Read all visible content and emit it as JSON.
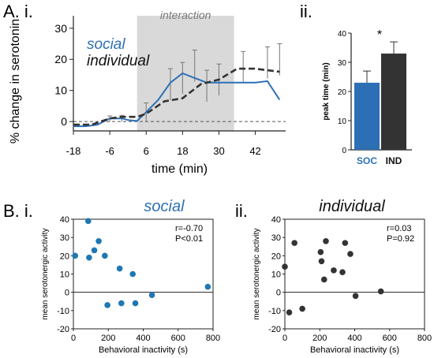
{
  "panel_labels": {
    "A_i": "A. i.",
    "A_ii": "ii.",
    "B_i": "B. i.",
    "B_ii": "ii."
  },
  "colors": {
    "social": "#2d6fb5",
    "individual": "#333333",
    "scatter_social": "#1f77b4",
    "shade": "#d9d9d9"
  },
  "chart_data": [
    {
      "id": "timecourse",
      "type": "line",
      "ylabel": "% change in serotonin",
      "xlabel": "time (min)",
      "x_ticks": [
        "-18",
        "-6",
        "6",
        "18",
        "30",
        "42"
      ],
      "y_ticks": [
        "0",
        "10",
        "20",
        "30"
      ],
      "xlim": [
        -18,
        52
      ],
      "ylim": [
        -3,
        34
      ],
      "shaded_interval": {
        "label": "interaction",
        "x": [
          3,
          35
        ]
      },
      "series": [
        {
          "name": "social",
          "style": "solid",
          "x": [
            -18,
            -14,
            -10,
            -6,
            -2,
            0,
            3,
            6,
            10,
            14,
            18,
            22,
            26,
            30,
            34,
            38,
            42,
            46,
            50
          ],
          "y": [
            -1.5,
            -1.5,
            -1.0,
            1.0,
            1.0,
            0.5,
            0.2,
            3.0,
            7.0,
            12.5,
            15.5,
            14.0,
            12.5,
            12.5,
            12.5,
            12.5,
            12.5,
            13.0,
            7.0
          ]
        },
        {
          "name": "individual",
          "style": "dashed",
          "x": [
            -18,
            -12,
            -6,
            -2,
            3,
            6,
            12,
            18,
            24,
            30,
            36,
            42,
            50
          ],
          "y": [
            -1.0,
            -1.0,
            1.0,
            1.5,
            1.5,
            2.5,
            6.5,
            7.5,
            12.0,
            13.5,
            17.0,
            17.0,
            16.0
          ]
        }
      ],
      "error_bars": [
        {
          "x": -6,
          "top": 1.8
        },
        {
          "x": -2,
          "top": 2.0
        },
        {
          "x": 6,
          "top": 6.0
        },
        {
          "x": 14,
          "top": 17.0
        },
        {
          "x": 18,
          "top": 19.0
        },
        {
          "x": 22,
          "top": 23.0
        },
        {
          "x": 26,
          "top": 16.5
        },
        {
          "x": 30,
          "top": 18.5
        },
        {
          "x": 38,
          "top": 22.5
        },
        {
          "x": 46,
          "top": 24.0
        },
        {
          "x": 50,
          "top": 25.0
        }
      ]
    },
    {
      "id": "peak_time",
      "type": "bar",
      "ylabel": "peak time (min)",
      "categories": [
        "SOC",
        "IND"
      ],
      "values": [
        23,
        33
      ],
      "errors": [
        4,
        4
      ],
      "ylim": [
        0,
        40
      ],
      "y_ticks": [
        "0",
        "10",
        "20",
        "30",
        "40"
      ],
      "annotation": "*"
    },
    {
      "id": "scatter_social",
      "type": "scatter",
      "title": "social",
      "xlabel": "Behavioral inactivity (s)",
      "ylabel": "mean serotonergic activity",
      "xlim": [
        0,
        800
      ],
      "ylim": [
        -20,
        40
      ],
      "x_ticks": [
        "0",
        "200",
        "400",
        "600",
        "800"
      ],
      "y_ticks": [
        "-20",
        "-10",
        "0",
        "10",
        "20",
        "30",
        "40"
      ],
      "stats": [
        "r=-0.70",
        "P<0.01"
      ],
      "points": [
        {
          "x": 10,
          "y": 20
        },
        {
          "x": 85,
          "y": 39
        },
        {
          "x": 90,
          "y": 19
        },
        {
          "x": 120,
          "y": 23
        },
        {
          "x": 145,
          "y": 28
        },
        {
          "x": 180,
          "y": 20
        },
        {
          "x": 195,
          "y": -7
        },
        {
          "x": 265,
          "y": 13
        },
        {
          "x": 275,
          "y": -6
        },
        {
          "x": 340,
          "y": 10
        },
        {
          "x": 355,
          "y": -6
        },
        {
          "x": 450,
          "y": -1.5
        },
        {
          "x": 770,
          "y": 3
        }
      ]
    },
    {
      "id": "scatter_individual",
      "type": "scatter",
      "title": "individual",
      "xlabel": "Behavioral inactivity (s)",
      "ylabel": "mean serotonergic activity",
      "xlim": [
        0,
        800
      ],
      "ylim": [
        -20,
        40
      ],
      "x_ticks": [
        "0",
        "200",
        "400",
        "600",
        "800"
      ],
      "y_ticks": [
        "-20",
        "-10",
        "0",
        "10",
        "20",
        "30",
        "40"
      ],
      "stats": [
        "r=0.03",
        "P=0.92"
      ],
      "points": [
        {
          "x": 0,
          "y": 14
        },
        {
          "x": 25,
          "y": -11
        },
        {
          "x": 55,
          "y": 27
        },
        {
          "x": 100,
          "y": -9
        },
        {
          "x": 205,
          "y": 22
        },
        {
          "x": 210,
          "y": 17
        },
        {
          "x": 225,
          "y": 7
        },
        {
          "x": 235,
          "y": 28
        },
        {
          "x": 280,
          "y": 12
        },
        {
          "x": 330,
          "y": 11
        },
        {
          "x": 345,
          "y": 27
        },
        {
          "x": 375,
          "y": 21
        },
        {
          "x": 405,
          "y": -2
        },
        {
          "x": 550,
          "y": 0.5
        }
      ]
    }
  ]
}
